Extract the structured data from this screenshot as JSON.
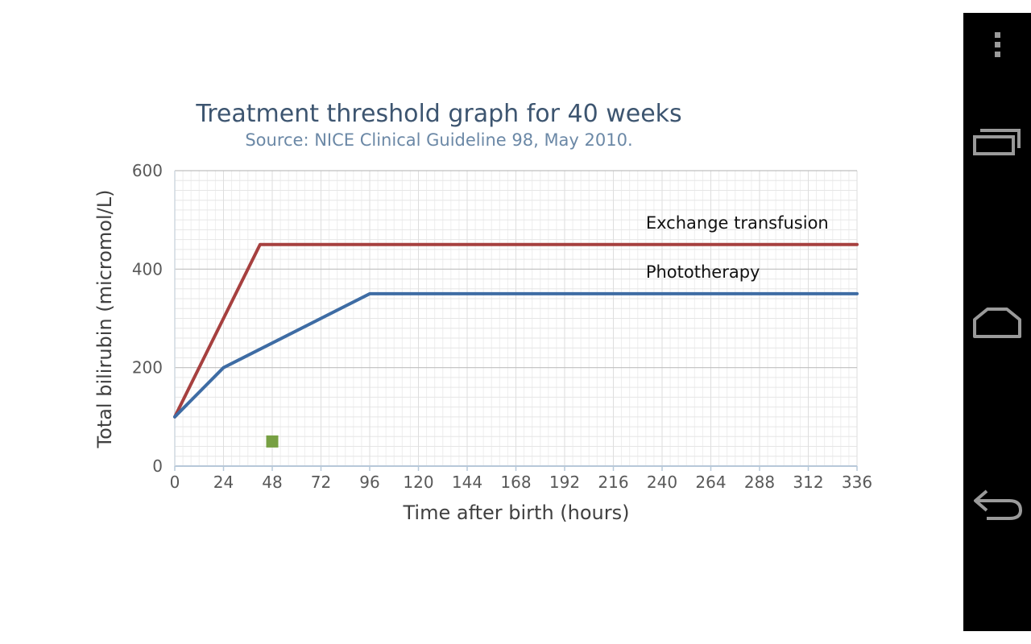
{
  "chart_data": {
    "type": "line",
    "title": "Treatment threshold graph for 40 weeks",
    "subtitle": "Source: NICE Clinical Guideline 98, May 2010.",
    "xlabel": "Time after birth (hours)",
    "ylabel": "Total bilirubin (micromol/L)",
    "xlim": [
      0,
      336
    ],
    "ylim": [
      0,
      600
    ],
    "xticks": [
      0,
      24,
      48,
      72,
      96,
      120,
      144,
      168,
      192,
      216,
      240,
      264,
      288,
      312,
      336
    ],
    "yticks": [
      0,
      200,
      400,
      600
    ],
    "grid": true,
    "series": [
      {
        "name": "Exchange transfusion",
        "color": "#a6403f",
        "points": [
          [
            0,
            100
          ],
          [
            42,
            450
          ],
          [
            336,
            450
          ]
        ]
      },
      {
        "name": "Phototherapy",
        "color": "#3e6ca4",
        "points": [
          [
            0,
            100
          ],
          [
            24,
            200
          ],
          [
            96,
            350
          ],
          [
            336,
            350
          ]
        ]
      }
    ],
    "markers": [
      {
        "x": 48,
        "y": 50,
        "color": "#77a043"
      }
    ]
  },
  "nav": {
    "menu_icon": "overflow-menu-icon",
    "recents_icon": "recent-apps-icon",
    "home_icon": "home-icon",
    "back_icon": "back-icon"
  }
}
